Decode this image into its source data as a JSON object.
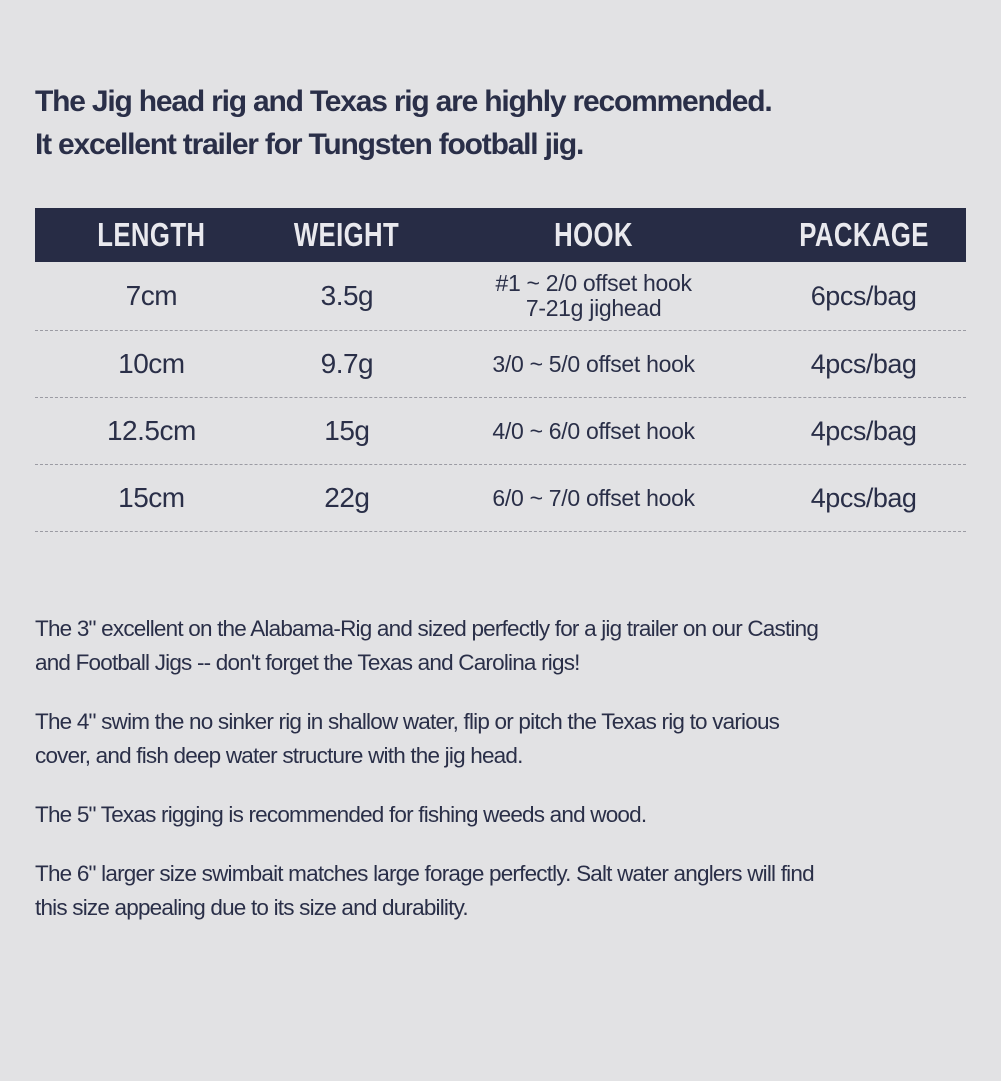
{
  "colors": {
    "background": "#e2e2e4",
    "header_bar": "#272c45",
    "header_text": "#e9e9ee",
    "body_text": "#2a2f48",
    "divider": "#9b9ba3"
  },
  "intro": {
    "lines": [
      "The Jig head rig and Texas rig are highly recommended.",
      "It excellent trailer for Tungsten football jig."
    ]
  },
  "table": {
    "columns": [
      "LENGTH",
      "WEIGHT",
      "HOOK",
      "PACKAGE"
    ],
    "rows": [
      {
        "length": "7cm",
        "weight": "3.5g",
        "hook_line1": "#1 ~ 2/0 offset hook",
        "hook_line2": "7-21g jighead",
        "package": "6pcs/bag"
      },
      {
        "length": "10cm",
        "weight": "9.7g",
        "hook_line1": "3/0 ~ 5/0 offset hook",
        "package": "4pcs/bag"
      },
      {
        "length": "12.5cm",
        "weight": "15g",
        "hook_line1": "4/0 ~ 6/0 offset hook",
        "package": "4pcs/bag"
      },
      {
        "length": "15cm",
        "weight": "22g",
        "hook_line1": "6/0 ~ 7/0 offset hook",
        "package": "4pcs/bag"
      }
    ]
  },
  "paragraphs": [
    {
      "lines": [
        "The 3\" excellent on the Alabama-Rig and sized perfectly for a jig trailer on our Casting",
        "and Football Jigs -- don't forget the Texas and Carolina rigs!"
      ]
    },
    {
      "lines": [
        "The 4\" swim the no sinker rig in shallow water, flip or pitch the Texas rig to various",
        "cover, and fish deep water structure with the jig head."
      ]
    },
    {
      "lines": [
        "The 5\" Texas rigging is recommended for fishing weeds and wood."
      ]
    },
    {
      "lines": [
        "The 6\" larger size swimbait matches large forage perfectly. Salt water anglers will find",
        "this size appealing due to its size and durability."
      ]
    }
  ]
}
